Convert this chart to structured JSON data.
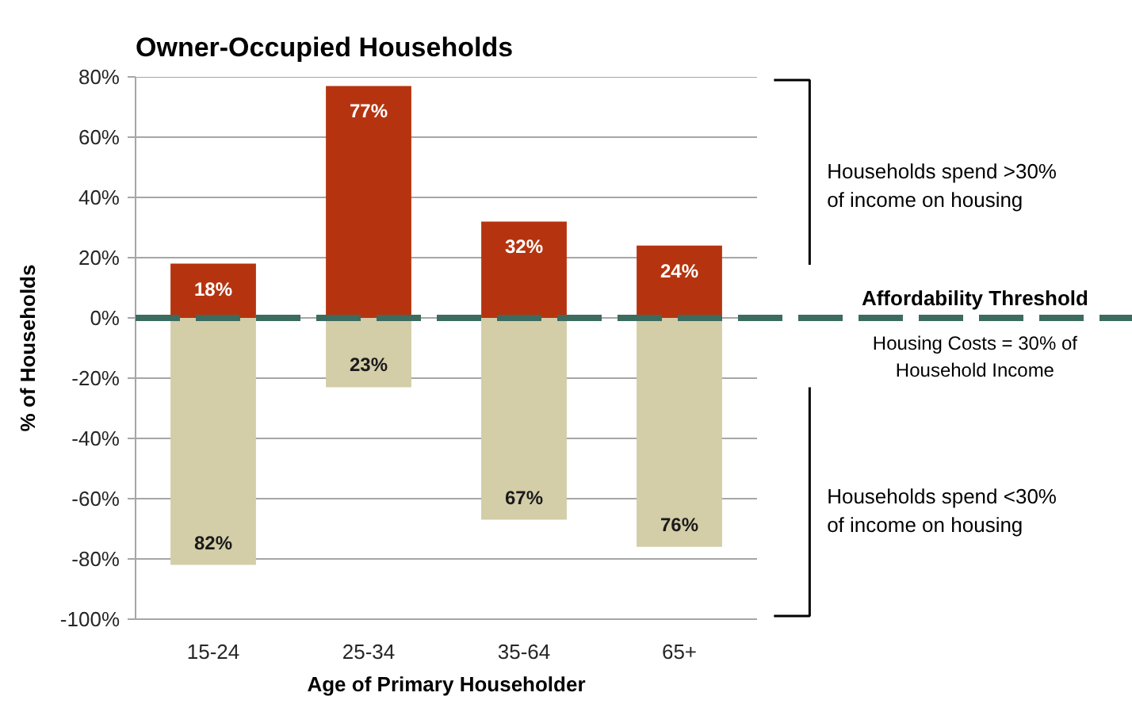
{
  "chart_data": {
    "type": "bar",
    "title": "Owner-Occupied Households",
    "xlabel": "Age of Primary Householder",
    "ylabel": "% of Households",
    "categories": [
      "15-24",
      "25-34",
      "35-64",
      "65+"
    ],
    "series": [
      {
        "color": "#b5340f",
        "base": [
          0,
          0,
          0,
          0
        ],
        "values": [
          18,
          77,
          32,
          24
        ],
        "value_labels": [
          "18%",
          "77%",
          "32%",
          "24%"
        ]
      },
      {
        "color": "#d3cda8",
        "base": [
          -82,
          -23,
          -67,
          -76
        ],
        "values": [
          82,
          23,
          67,
          76
        ],
        "value_labels": [
          "82%",
          "23%",
          "67%",
          "76%"
        ]
      }
    ],
    "ylim": [
      -100,
      80
    ],
    "yticks": [
      {
        "value": -100,
        "label": "-100%"
      },
      {
        "value": -80,
        "label": "-80%"
      },
      {
        "value": -60,
        "label": "-60%"
      },
      {
        "value": -40,
        "label": "-40%"
      },
      {
        "value": -20,
        "label": "-20%"
      },
      {
        "value": 0,
        "label": "0%"
      },
      {
        "value": 20,
        "label": "20%"
      },
      {
        "value": 40,
        "label": "40%"
      },
      {
        "value": 60,
        "label": "60%"
      },
      {
        "value": 80,
        "label": "80%"
      }
    ],
    "grid": "y",
    "ref_lines": [
      {
        "axis": "y",
        "value": 0,
        "label": "Affordability Threshold",
        "color": "#3c6b5f",
        "line_style": "dashed"
      }
    ],
    "annotations": [
      "Households spend >30%\nof income on housing",
      "Housing Costs = 30% of\nHousehold Income",
      "Households spend <30%\nof income on housing"
    ]
  }
}
